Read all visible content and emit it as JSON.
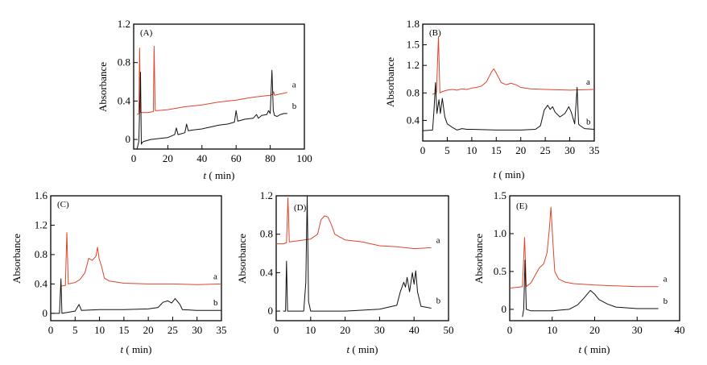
{
  "figure": {
    "panels": [
      "(A)",
      "(B)",
      "(C)",
      "(D)",
      "(E)"
    ]
  },
  "chart_data": [
    {
      "type": "line",
      "panel_label": "(A)",
      "ylabel": "Absorbance",
      "xlabel_italic": "t",
      "xlabel_rest": " ( min)",
      "xlim": [
        0,
        100
      ],
      "ylim": [
        -0.1,
        1.2
      ],
      "xticks": [
        0,
        20,
        40,
        60,
        80,
        100
      ],
      "yticks": [
        0,
        0.4,
        0.8,
        1.2
      ],
      "ytick_labels": [
        "0",
        "0.4",
        "0.8",
        "1.2"
      ],
      "series": [
        {
          "name": "a",
          "color": "#e0442a",
          "points": [
            [
              2,
              0.26
            ],
            [
              3,
              0.27
            ],
            [
              3.5,
              0.95
            ],
            [
              4,
              0.28
            ],
            [
              8,
              0.28
            ],
            [
              11.5,
              0.29
            ],
            [
              12,
              0.97
            ],
            [
              12.6,
              0.3
            ],
            [
              14,
              0.3
            ],
            [
              20,
              0.31
            ],
            [
              30,
              0.34
            ],
            [
              40,
              0.36
            ],
            [
              50,
              0.39
            ],
            [
              60,
              0.41
            ],
            [
              70,
              0.44
            ],
            [
              80,
              0.46
            ],
            [
              81.5,
              0.47
            ],
            [
              82,
              0.5
            ],
            [
              82.5,
              0.46
            ],
            [
              85,
              0.47
            ],
            [
              90,
              0.49
            ]
          ]
        },
        {
          "name": "b",
          "color": "#111111",
          "points": [
            [
              2,
              -0.1
            ],
            [
              3,
              -0.02
            ],
            [
              4,
              0.7
            ],
            [
              4.5,
              -0.05
            ],
            [
              5,
              -0.03
            ],
            [
              6,
              -0.02
            ],
            [
              10,
              0.0
            ],
            [
              15,
              0.01
            ],
            [
              20,
              0.02
            ],
            [
              24,
              0.05
            ],
            [
              25,
              0.12
            ],
            [
              26,
              0.05
            ],
            [
              30,
              0.07
            ],
            [
              31,
              0.16
            ],
            [
              32,
              0.09
            ],
            [
              35,
              0.1
            ],
            [
              40,
              0.11
            ],
            [
              45,
              0.13
            ],
            [
              50,
              0.15
            ],
            [
              55,
              0.16
            ],
            [
              59,
              0.18
            ],
            [
              60,
              0.3
            ],
            [
              61,
              0.19
            ],
            [
              65,
              0.21
            ],
            [
              70,
              0.22
            ],
            [
              72,
              0.26
            ],
            [
              73,
              0.22
            ],
            [
              75,
              0.25
            ],
            [
              78,
              0.26
            ],
            [
              79,
              0.3
            ],
            [
              80,
              0.27
            ],
            [
              81,
              0.72
            ],
            [
              81.8,
              0.3
            ],
            [
              82.5,
              0.25
            ],
            [
              84,
              0.24
            ],
            [
              86,
              0.26
            ],
            [
              88,
              0.27
            ],
            [
              90,
              0.27
            ]
          ]
        }
      ]
    },
    {
      "type": "line",
      "panel_label": "(B)",
      "ylabel": "Absorbance",
      "xlabel_italic": "t",
      "xlabel_rest": " ( min)",
      "xlim": [
        0,
        35
      ],
      "ylim": [
        0.1,
        1.8
      ],
      "xticks": [
        0,
        5,
        10,
        15,
        20,
        25,
        30,
        35
      ],
      "yticks": [
        0.4,
        0.8,
        1.2,
        1.5,
        1.8
      ],
      "ytick_labels": [
        "0.4",
        "0.8",
        "1.2",
        "1.5",
        "1.8"
      ],
      "series": [
        {
          "name": "a",
          "color": "#e0442a",
          "points": [
            [
              2,
              0.78
            ],
            [
              2.8,
              0.8
            ],
            [
              3.2,
              1.62
            ],
            [
              3.5,
              0.8
            ],
            [
              4,
              0.82
            ],
            [
              5,
              0.84
            ],
            [
              6,
              0.85
            ],
            [
              7,
              0.84
            ],
            [
              8,
              0.86
            ],
            [
              9,
              0.85
            ],
            [
              10,
              0.87
            ],
            [
              11,
              0.88
            ],
            [
              12,
              0.9
            ],
            [
              13,
              0.96
            ],
            [
              14,
              1.1
            ],
            [
              14.5,
              1.15
            ],
            [
              15,
              1.09
            ],
            [
              16,
              0.95
            ],
            [
              17,
              0.92
            ],
            [
              18,
              0.94
            ],
            [
              19,
              0.92
            ],
            [
              20,
              0.88
            ],
            [
              22,
              0.86
            ],
            [
              25,
              0.85
            ],
            [
              30,
              0.84
            ],
            [
              35,
              0.85
            ]
          ]
        },
        {
          "name": "b",
          "color": "#111111",
          "points": [
            [
              0,
              0.25
            ],
            [
              2,
              0.26
            ],
            [
              2.3,
              0.55
            ],
            [
              2.6,
              0.95
            ],
            [
              2.9,
              0.5
            ],
            [
              3.3,
              0.7
            ],
            [
              3.6,
              0.5
            ],
            [
              4,
              0.72
            ],
            [
              4.5,
              0.45
            ],
            [
              5,
              0.35
            ],
            [
              6,
              0.3
            ],
            [
              7,
              0.26
            ],
            [
              8,
              0.28
            ],
            [
              9,
              0.27
            ],
            [
              10,
              0.27
            ],
            [
              15,
              0.26
            ],
            [
              20,
              0.26
            ],
            [
              23,
              0.27
            ],
            [
              24,
              0.32
            ],
            [
              24.8,
              0.55
            ],
            [
              25.5,
              0.62
            ],
            [
              26,
              0.56
            ],
            [
              26.5,
              0.6
            ],
            [
              27,
              0.52
            ],
            [
              28,
              0.45
            ],
            [
              29,
              0.5
            ],
            [
              29.8,
              0.6
            ],
            [
              30.3,
              0.52
            ],
            [
              31,
              0.35
            ],
            [
              31.5,
              0.88
            ],
            [
              31.8,
              0.35
            ],
            [
              32,
              0.33
            ],
            [
              33,
              0.28
            ],
            [
              35,
              0.27
            ]
          ]
        }
      ]
    },
    {
      "type": "line",
      "panel_label": "(C)",
      "ylabel": "Absorbance",
      "xlabel_italic": "t",
      "xlabel_rest": " ( min)",
      "xlim": [
        0,
        35
      ],
      "ylim": [
        -0.1,
        1.6
      ],
      "xticks": [
        0,
        5,
        10,
        15,
        20,
        25,
        30,
        35
      ],
      "yticks": [
        0,
        0.4,
        0.8,
        1.2,
        1.6
      ],
      "ytick_labels": [
        "0",
        "0.4",
        "0.8",
        "1.2",
        "1.6"
      ],
      "series": [
        {
          "name": "a",
          "color": "#e0442a",
          "points": [
            [
              2,
              0.37
            ],
            [
              3,
              0.38
            ],
            [
              3.3,
              1.1
            ],
            [
              3.6,
              0.4
            ],
            [
              5,
              0.42
            ],
            [
              6,
              0.46
            ],
            [
              7,
              0.55
            ],
            [
              7.8,
              0.75
            ],
            [
              8.5,
              0.72
            ],
            [
              9.3,
              0.78
            ],
            [
              9.6,
              0.9
            ],
            [
              9.9,
              0.75
            ],
            [
              10.5,
              0.62
            ],
            [
              11,
              0.48
            ],
            [
              12,
              0.44
            ],
            [
              15,
              0.41
            ],
            [
              20,
              0.4
            ],
            [
              25,
              0.4
            ],
            [
              30,
              0.39
            ],
            [
              35,
              0.4
            ]
          ]
        },
        {
          "name": "b",
          "color": "#111111",
          "points": [
            [
              0,
              0.0
            ],
            [
              1.8,
              0.0
            ],
            [
              2.1,
              0.47
            ],
            [
              2.3,
              0.0
            ],
            [
              5,
              0.03
            ],
            [
              5.8,
              0.12
            ],
            [
              6.3,
              0.04
            ],
            [
              10,
              0.05
            ],
            [
              15,
              0.05
            ],
            [
              20,
              0.06
            ],
            [
              22,
              0.08
            ],
            [
              23,
              0.15
            ],
            [
              24,
              0.17
            ],
            [
              24.8,
              0.14
            ],
            [
              25.5,
              0.2
            ],
            [
              26.5,
              0.12
            ],
            [
              27,
              0.05
            ],
            [
              30,
              0.04
            ],
            [
              35,
              0.04
            ]
          ]
        }
      ]
    },
    {
      "type": "line",
      "panel_label": "(D)",
      "ylabel": "Absorbance",
      "xlabel_italic": "t",
      "xlabel_rest": " ( min)",
      "xlim": [
        0,
        50
      ],
      "ylim": [
        -0.1,
        1.2
      ],
      "xticks": [
        0,
        10,
        20,
        30,
        40,
        50
      ],
      "yticks": [
        0,
        0.4,
        0.8,
        1.2
      ],
      "ytick_labels": [
        "0",
        "0.4",
        "0.8",
        "1.2"
      ],
      "series": [
        {
          "name": "a",
          "color": "#e0442a",
          "points": [
            [
              0,
              0.7
            ],
            [
              2,
              0.7
            ],
            [
              3,
              0.71
            ],
            [
              3.4,
              1.18
            ],
            [
              3.8,
              0.72
            ],
            [
              6,
              0.73
            ],
            [
              10,
              0.75
            ],
            [
              12,
              0.8
            ],
            [
              13,
              0.95
            ],
            [
              14,
              0.99
            ],
            [
              15,
              0.98
            ],
            [
              16,
              0.9
            ],
            [
              17,
              0.8
            ],
            [
              20,
              0.74
            ],
            [
              25,
              0.72
            ],
            [
              30,
              0.68
            ],
            [
              35,
              0.67
            ],
            [
              40,
              0.65
            ],
            [
              45,
              0.66
            ]
          ]
        },
        {
          "name": "b",
          "color": "#111111",
          "points": [
            [
              2,
              0.0
            ],
            [
              2.7,
              0.0
            ],
            [
              3,
              0.52
            ],
            [
              3.3,
              0.0
            ],
            [
              8,
              0.0
            ],
            [
              8.6,
              0.3
            ],
            [
              9,
              1.2
            ],
            [
              9.4,
              0.1
            ],
            [
              10,
              0.0
            ],
            [
              15,
              0.0
            ],
            [
              20,
              0.0
            ],
            [
              30,
              0.02
            ],
            [
              35,
              0.06
            ],
            [
              36,
              0.2
            ],
            [
              37,
              0.3
            ],
            [
              37.5,
              0.25
            ],
            [
              38,
              0.35
            ],
            [
              38.7,
              0.2
            ],
            [
              39.5,
              0.4
            ],
            [
              40,
              0.28
            ],
            [
              40.5,
              0.42
            ],
            [
              41,
              0.2
            ],
            [
              42,
              0.05
            ],
            [
              45,
              0.03
            ]
          ]
        }
      ]
    },
    {
      "type": "line",
      "panel_label": "(E)",
      "ylabel": "Absorbance",
      "xlabel_italic": "t",
      "xlabel_rest": " ( min)",
      "xlim": [
        0,
        40
      ],
      "ylim": [
        -0.15,
        1.5
      ],
      "xticks": [
        0,
        10,
        20,
        30,
        40
      ],
      "yticks": [
        0,
        0.5,
        1.0,
        1.5
      ],
      "ytick_labels": [
        "0",
        "0.5",
        "1.0",
        "1.5"
      ],
      "series": [
        {
          "name": "a",
          "color": "#e0442a",
          "points": [
            [
              0,
              0.28
            ],
            [
              3,
              0.3
            ],
            [
              3.5,
              0.95
            ],
            [
              3.9,
              0.3
            ],
            [
              5,
              0.35
            ],
            [
              6,
              0.45
            ],
            [
              7,
              0.55
            ],
            [
              8,
              0.6
            ],
            [
              8.8,
              0.75
            ],
            [
              9.3,
              1.05
            ],
            [
              9.7,
              1.35
            ],
            [
              10.1,
              0.95
            ],
            [
              10.6,
              0.5
            ],
            [
              11.5,
              0.4
            ],
            [
              13,
              0.36
            ],
            [
              15,
              0.34
            ],
            [
              20,
              0.32
            ],
            [
              25,
              0.31
            ],
            [
              30,
              0.3
            ],
            [
              35,
              0.3
            ]
          ]
        },
        {
          "name": "b",
          "color": "#111111",
          "points": [
            [
              3,
              -0.1
            ],
            [
              3.3,
              0.0
            ],
            [
              3.6,
              0.65
            ],
            [
              3.9,
              0.0
            ],
            [
              5,
              -0.02
            ],
            [
              10,
              -0.02
            ],
            [
              14,
              0.0
            ],
            [
              16,
              0.06
            ],
            [
              17.5,
              0.15
            ],
            [
              19,
              0.25
            ],
            [
              20,
              0.2
            ],
            [
              21,
              0.13
            ],
            [
              23,
              0.07
            ],
            [
              25,
              0.03
            ],
            [
              30,
              0.01
            ],
            [
              35,
              0.01
            ]
          ]
        }
      ]
    }
  ]
}
